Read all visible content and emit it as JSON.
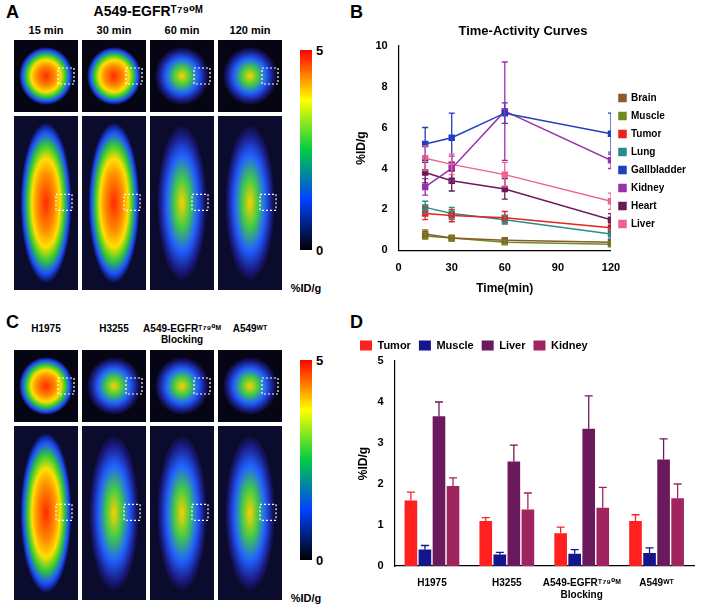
{
  "panel_a": {
    "letter": "A",
    "title": "A549-EGFRᵀ⁷⁹⁰ᴹ",
    "columns": [
      "15 min",
      "30 min",
      "60 min",
      "120 min"
    ],
    "colorbar": {
      "range": [
        0,
        5
      ],
      "ticks": [
        5,
        0
      ],
      "label": "%ID/g"
    }
  },
  "panel_c": {
    "letter": "C",
    "columns": [
      "H1975",
      "H3255",
      "A549-EGFRᵀ⁷⁹⁰ᴹ Blocking",
      "A549ᵂᵀ"
    ],
    "colorbar": {
      "range": [
        0,
        5
      ],
      "ticks": [
        5,
        0
      ],
      "label": "%ID/g"
    }
  },
  "chart_data": [
    {
      "letter": "B",
      "type": "line",
      "title": "Time-Activity Curves",
      "x_label": "Time(min)",
      "y_label": "%ID/g",
      "x": [
        15,
        30,
        60,
        120
      ],
      "xlim": [
        0,
        120
      ],
      "xticks": [
        0,
        30,
        60,
        90,
        120
      ],
      "ylim": [
        0,
        10
      ],
      "yticks": [
        0,
        2,
        4,
        6,
        8,
        10
      ],
      "grid": false,
      "legend": "right",
      "marker": "square",
      "series": [
        {
          "name": "Brain",
          "color": "#8b5a2b",
          "values": [
            0.8,
            0.6,
            0.5,
            0.4
          ],
          "errors": [
            0.2,
            0.15,
            0.1,
            0.1
          ]
        },
        {
          "name": "Muscle",
          "color": "#6b8e23",
          "values": [
            0.7,
            0.6,
            0.4,
            0.3
          ],
          "errors": [
            0.15,
            0.1,
            0.1,
            0.1
          ]
        },
        {
          "name": "Tumor",
          "color": "#e8231f",
          "values": [
            1.8,
            1.7,
            1.6,
            1.1
          ],
          "errors": [
            0.3,
            0.3,
            0.3,
            0.2
          ]
        },
        {
          "name": "Lung",
          "color": "#2a8c8c",
          "values": [
            2.1,
            1.8,
            1.5,
            0.8
          ],
          "errors": [
            0.3,
            0.3,
            0.2,
            0.2
          ]
        },
        {
          "name": "Gallbladder",
          "color": "#1f3fbf",
          "values": [
            5.2,
            5.5,
            6.7,
            5.7
          ],
          "errors": [
            0.8,
            1.2,
            0.5,
            1.0
          ]
        },
        {
          "name": "Kidney",
          "color": "#9b2fae",
          "values": [
            3.1,
            4.0,
            6.8,
            4.4
          ],
          "errors": [
            0.4,
            0.6,
            2.4,
            0.4
          ]
        },
        {
          "name": "Heart",
          "color": "#6a1b5a",
          "values": [
            3.8,
            3.4,
            3.0,
            1.5
          ],
          "errors": [
            0.5,
            0.5,
            0.5,
            0.3
          ]
        },
        {
          "name": "Liver",
          "color": "#f06292",
          "values": [
            4.5,
            4.2,
            3.7,
            2.4
          ],
          "errors": [
            0.6,
            0.5,
            0.6,
            0.4
          ]
        }
      ]
    },
    {
      "letter": "D",
      "type": "bar",
      "y_label": "%ID/g",
      "categories": [
        "H1975",
        "H3255",
        "A549-EGFRᵀ⁷⁹⁰ᴹ Blocking",
        "A549ᵂᵀ"
      ],
      "ylim": [
        0,
        5
      ],
      "yticks": [
        0,
        1,
        2,
        3,
        4,
        5
      ],
      "grid": false,
      "legend": "top",
      "series": [
        {
          "name": "Tumor",
          "color": "#ff2020",
          "values": [
            1.6,
            1.1,
            0.8,
            1.1
          ],
          "errors": [
            0.2,
            0.08,
            0.15,
            0.15
          ]
        },
        {
          "name": "Muscle",
          "color": "#14148c",
          "values": [
            0.4,
            0.28,
            0.3,
            0.32
          ],
          "errors": [
            0.1,
            0.05,
            0.1,
            0.12
          ]
        },
        {
          "name": "Liver",
          "color": "#6a1a5c",
          "values": [
            3.65,
            2.55,
            3.35,
            2.6
          ],
          "errors": [
            0.35,
            0.4,
            0.8,
            0.5
          ]
        },
        {
          "name": "Kidney",
          "color": "#a0245e",
          "values": [
            1.95,
            1.38,
            1.42,
            1.65
          ],
          "errors": [
            0.2,
            0.4,
            0.5,
            0.35
          ]
        }
      ]
    }
  ]
}
